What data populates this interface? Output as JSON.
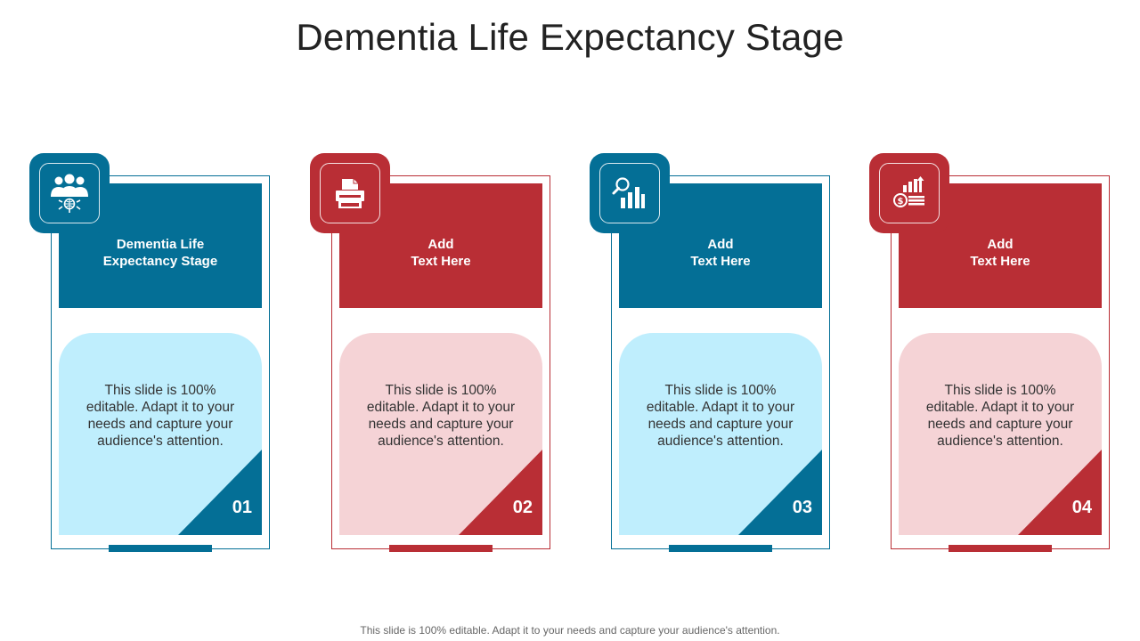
{
  "title": "Dementia Life Expectancy Stage",
  "footer": "This slide is 100% editable. Adapt it to your needs and capture your audience's attention.",
  "colors": {
    "blue": "#046f96",
    "red": "#b92e35",
    "light_blue": "#bfeefd",
    "light_red": "#f5d3d6"
  },
  "cards": [
    {
      "heading": "Dementia Life\nExpectancy Stage",
      "text": "This slide is 100% editable. Adapt it to your needs and capture your audience's attention.",
      "number": "01",
      "icon": "team-network-icon"
    },
    {
      "heading": "Add\nText Here",
      "text": "This slide is 100% editable. Adapt it to your needs and capture your audience's attention.",
      "number": "02",
      "icon": "printer-icon"
    },
    {
      "heading": "Add\nText Here",
      "text": "This slide is 100% editable. Adapt it to your needs and capture your audience's attention.",
      "number": "03",
      "icon": "search-chart-icon"
    },
    {
      "heading": "Add\nText Here",
      "text": "This slide is 100% editable. Adapt it to your needs and capture your audience's attention.",
      "number": "04",
      "icon": "money-growth-icon"
    }
  ]
}
